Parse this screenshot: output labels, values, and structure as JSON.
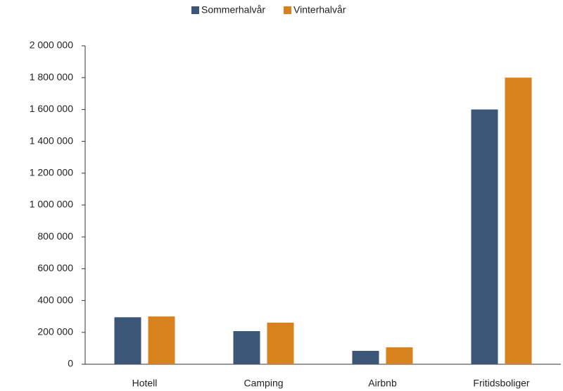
{
  "chart_data": {
    "type": "bar",
    "categories": [
      "Hotell",
      "Camping",
      "Airbnb",
      "Fritidsboliger"
    ],
    "series": [
      {
        "name": "Sommerhalvår",
        "color": "#3b5676",
        "values": [
          295000,
          208000,
          84000,
          1600000
        ]
      },
      {
        "name": "Vinterhalvår",
        "color": "#d8821d",
        "values": [
          300000,
          261000,
          106000,
          1800000
        ]
      }
    ],
    "ylim": [
      0,
      2000000
    ],
    "yticks": [
      0,
      {
        "value": 200000,
        "label": "200 000"
      },
      {
        "value": 400000,
        "label": "400 000"
      },
      {
        "value": 600000,
        "label": "600 000"
      },
      {
        "value": 800000,
        "label": "800 000"
      },
      {
        "value": 1000000,
        "label": "1 000 000"
      },
      {
        "value": 1200000,
        "label": "1 200 000"
      },
      {
        "value": 1400000,
        "label": "1 400 000"
      },
      {
        "value": 1600000,
        "label": "1 600 000"
      },
      {
        "value": 1800000,
        "label": "1 800 000"
      },
      {
        "value": 2000000,
        "label": "2 000 000"
      }
    ],
    "grid": false,
    "legend": "top"
  }
}
